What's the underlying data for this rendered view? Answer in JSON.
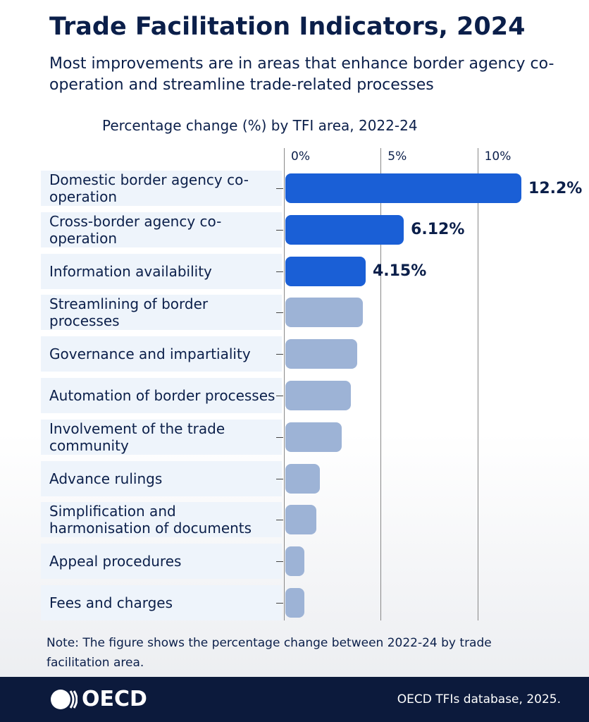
{
  "chart_data": {
    "type": "bar",
    "orientation": "horizontal",
    "title": "Trade Facilitation Indicators, 2024",
    "subtitle": "Most improvements are in areas that enhance border agency co-operation and streamline trade-related processes",
    "axis_title": "Percentage change (%) by TFI area, 2022-24",
    "categories": [
      "Domestic border agency co-operation",
      "Cross-border agency co-operation",
      "Information availability",
      "Streamlining of border processes",
      "Governance and impartiality",
      "Automation of border processes",
      "Involvement of the trade community",
      "Advance rulings",
      "Simplification and harmonisation of documents",
      "Appeal procedures",
      "Fees and charges"
    ],
    "values": [
      12.2,
      6.12,
      4.15,
      4.0,
      3.7,
      3.4,
      2.9,
      1.8,
      1.6,
      1.0,
      1.0
    ],
    "value_labels": [
      "12.2%",
      "6.12%",
      "4.15%",
      null,
      null,
      null,
      null,
      null,
      null,
      null,
      null
    ],
    "colors": [
      "#1a5fd6",
      "#1a5fd6",
      "#1a5fd6",
      "#9db3d6",
      "#9db3d6",
      "#9db3d6",
      "#9db3d6",
      "#9db3d6",
      "#9db3d6",
      "#9db3d6",
      "#9db3d6"
    ],
    "xlim": [
      0,
      13
    ],
    "xticks": [
      {
        "value": 0,
        "label": "0%"
      },
      {
        "value": 5,
        "label": "5%"
      },
      {
        "value": 10,
        "label": "10%"
      }
    ],
    "grid": true,
    "note": "Note: The figure shows the percentage change between 2022-24 by trade facilitation area.",
    "logo": "OECD",
    "source": "OECD TFIs database, 2025."
  }
}
